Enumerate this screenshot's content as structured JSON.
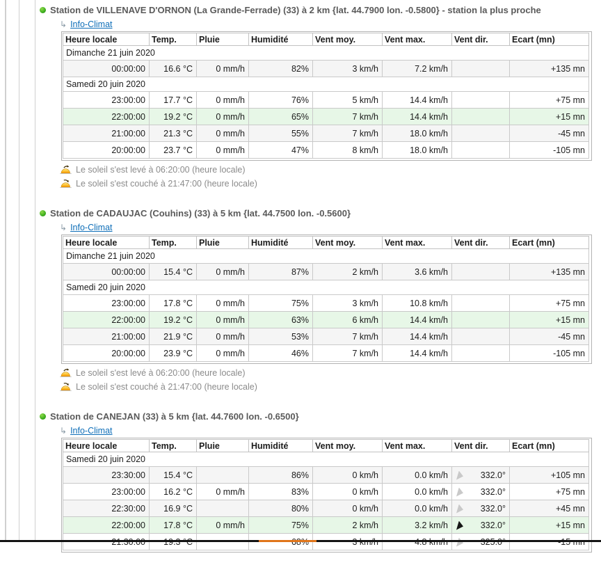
{
  "labels": {
    "info_climat": "Info-Climat",
    "return_arrow": "↳"
  },
  "table_headers": [
    "Heure locale",
    "Temp.",
    "Pluie",
    "Humidité",
    "Vent moy.",
    "Vent max.",
    "Vent dir.",
    "Ecart (mn)"
  ],
  "stations": [
    {
      "title": "Station de VILLENAVE D'ORNON (La Grande-Ferrade) (33) à 2 km {lat. 44.7900 lon. -0.5800} - station la plus proche",
      "rows": [
        {
          "type": "group",
          "label": "Dimanche 21 juin 2020"
        },
        {
          "type": "data",
          "bg": "gray",
          "cells": [
            "00:00:00",
            "16.6 °C",
            "0 mm/h",
            "82%",
            "3 km/h",
            "7.2 km/h",
            "",
            "+135 mn"
          ]
        },
        {
          "type": "group",
          "label": "Samedi 20 juin 2020"
        },
        {
          "type": "data",
          "bg": "white",
          "cells": [
            "23:00:00",
            "17.7 °C",
            "0 mm/h",
            "76%",
            "5 km/h",
            "14.4 km/h",
            "",
            "+75 mn"
          ]
        },
        {
          "type": "data",
          "bg": "green",
          "cells": [
            "22:00:00",
            "19.2 °C",
            "0 mm/h",
            "65%",
            "7 km/h",
            "14.4 km/h",
            "",
            "+15 mn"
          ]
        },
        {
          "type": "data",
          "bg": "gray",
          "cells": [
            "21:00:00",
            "21.3 °C",
            "0 mm/h",
            "55%",
            "7 km/h",
            "18.0 km/h",
            "",
            "-45 mn"
          ]
        },
        {
          "type": "data",
          "bg": "white",
          "cells": [
            "20:00:00",
            "23.7 °C",
            "0 mm/h",
            "47%",
            "8 km/h",
            "18.0 km/h",
            "",
            "-105 mn"
          ]
        }
      ],
      "sunrise": "Le soleil s'est levé à 06:20:00 (heure locale)",
      "sunset": "Le soleil s'est couché à 21:47:00 (heure locale)"
    },
    {
      "title": "Station de CADAUJAC (Couhins) (33) à 5 km {lat. 44.7500 lon. -0.5600}",
      "rows": [
        {
          "type": "group",
          "label": "Dimanche 21 juin 2020"
        },
        {
          "type": "data",
          "bg": "gray",
          "cells": [
            "00:00:00",
            "15.4 °C",
            "0 mm/h",
            "87%",
            "2 km/h",
            "3.6 km/h",
            "",
            "+135 mn"
          ]
        },
        {
          "type": "group",
          "label": "Samedi 20 juin 2020"
        },
        {
          "type": "data",
          "bg": "white",
          "cells": [
            "23:00:00",
            "17.8 °C",
            "0 mm/h",
            "75%",
            "3 km/h",
            "10.8 km/h",
            "",
            "+75 mn"
          ]
        },
        {
          "type": "data",
          "bg": "green",
          "cells": [
            "22:00:00",
            "19.2 °C",
            "0 mm/h",
            "63%",
            "6 km/h",
            "14.4 km/h",
            "",
            "+15 mn"
          ]
        },
        {
          "type": "data",
          "bg": "gray",
          "cells": [
            "21:00:00",
            "21.9 °C",
            "0 mm/h",
            "53%",
            "7 km/h",
            "14.4 km/h",
            "",
            "-45 mn"
          ]
        },
        {
          "type": "data",
          "bg": "white",
          "cells": [
            "20:00:00",
            "23.9 °C",
            "0 mm/h",
            "46%",
            "7 km/h",
            "14.4 km/h",
            "",
            "-105 mn"
          ]
        }
      ],
      "sunrise": "Le soleil s'est levé à 06:20:00 (heure locale)",
      "sunset": "Le soleil s'est couché à 21:47:00 (heure locale)"
    },
    {
      "title": "Station de CANEJAN (33) à 5 km {lat. 44.7600 lon. -0.6500}",
      "rows": [
        {
          "type": "group",
          "label": "Samedi 20 juin 2020"
        },
        {
          "type": "data",
          "bg": "gray",
          "wind_arrow": "gray",
          "cells": [
            "23:30:00",
            "15.4 °C",
            "",
            "86%",
            "0 km/h",
            "0.0 km/h",
            "332.0°",
            "+105 mn"
          ]
        },
        {
          "type": "data",
          "bg": "white",
          "wind_arrow": "gray",
          "cells": [
            "23:00:00",
            "16.2 °C",
            "0 mm/h",
            "83%",
            "0 km/h",
            "0.0 km/h",
            "332.0°",
            "+75 mn"
          ]
        },
        {
          "type": "data",
          "bg": "gray",
          "wind_arrow": "gray",
          "cells": [
            "22:30:00",
            "16.9 °C",
            "",
            "80%",
            "0 km/h",
            "0.0 km/h",
            "332.0°",
            "+45 mn"
          ]
        },
        {
          "type": "data",
          "bg": "green",
          "wind_arrow": "black",
          "cells": [
            "22:00:00",
            "17.8 °C",
            "0 mm/h",
            "75%",
            "2 km/h",
            "3.2 km/h",
            "332.0°",
            "+15 mn"
          ]
        },
        {
          "type": "data",
          "bg": "white",
          "wind_arrow": "gray",
          "cells": [
            "21:30:00",
            "19.3 °C",
            "",
            "68%",
            "3 km/h",
            "4.8 km/h",
            "325.0°",
            "-15 mn"
          ]
        }
      ]
    }
  ],
  "colors": {
    "row_highlight": "#e7f7e7",
    "row_shaded": "#f5f5f5",
    "link_blue": "#0e6eb8",
    "title_gray": "#5a5a5a",
    "bullet_green": "#3cae1e",
    "sun_text": "#8b8b8b",
    "footer_black": "#141414",
    "footer_orange": "#e0751a"
  }
}
